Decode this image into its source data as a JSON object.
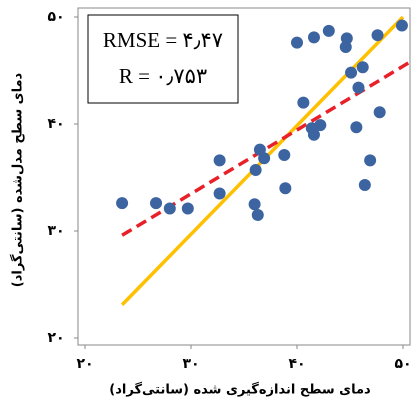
{
  "chart_data": {
    "type": "scatter",
    "xlabel": "دمای سطح  اندازه‌گیری شده (سانتی‌گراد)",
    "ylabel": "دمای سطح مدل‌شده (سانتی‌گراد)",
    "annotations": [
      "RMSE = ۴٫۴۷",
      "R = ۰٫۷۵۳"
    ],
    "xlim": [
      20,
      50
    ],
    "ylim": [
      20,
      50
    ],
    "xticks": [
      {
        "value": 20,
        "label": "۲۰"
      },
      {
        "value": 30,
        "label": "۳۰"
      },
      {
        "value": 40,
        "label": "۴۰"
      },
      {
        "value": 50,
        "label": "۵۰"
      }
    ],
    "yticks": [
      {
        "value": 20,
        "label": "۲۰"
      },
      {
        "value": 30,
        "label": "۳۰"
      },
      {
        "value": 40,
        "label": "۴۰"
      },
      {
        "value": 50,
        "label": "۵۰"
      }
    ],
    "series": [
      {
        "color": "#3c64a0",
        "x": [
          23.5,
          26.7,
          28.0,
          29.7,
          32.7,
          32.7,
          36.0,
          36.3,
          36.1,
          36.5,
          36.9,
          38.8,
          38.9,
          40.0,
          40.6,
          41.6,
          41.4,
          41.6,
          42.2,
          43.0,
          44.6,
          44.7,
          45.1,
          45.6,
          46.2,
          45.8,
          46.4,
          46.9,
          47.6,
          47.8,
          49.9
        ],
        "values": [
          32.6,
          32.6,
          32.1,
          32.1,
          36.6,
          33.5,
          32.5,
          31.5,
          35.7,
          37.6,
          36.8,
          37.1,
          34.0,
          47.6,
          42.0,
          48.1,
          39.6,
          39.0,
          39.9,
          48.7,
          47.2,
          48.0,
          44.8,
          39.7,
          45.3,
          43.4,
          34.3,
          36.6,
          48.3,
          41.1,
          49.2
        ]
      }
    ],
    "lines": [
      {
        "color": "#ffc000",
        "dash": false,
        "x": [
          23.5,
          50
        ],
        "values": [
          23.1,
          50
        ]
      },
      {
        "color": "#e8202a",
        "dash": true,
        "x": [
          23.5,
          50.5
        ],
        "values": [
          29.6,
          45.7
        ]
      }
    ]
  }
}
